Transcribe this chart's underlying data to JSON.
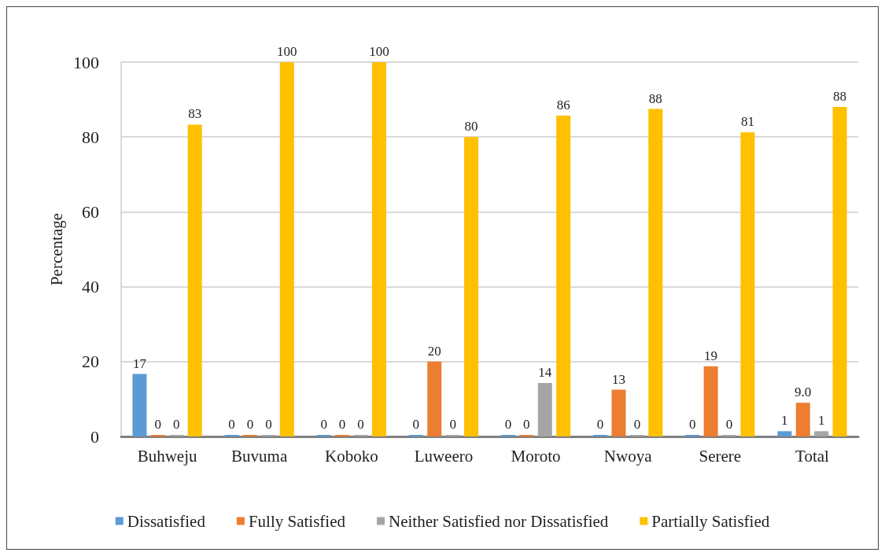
{
  "chart_data": {
    "type": "bar",
    "ylabel": "Percentage",
    "categories": [
      "Buhweju",
      "Buvuma",
      "Koboko",
      "Luweero",
      "Moroto",
      "Nwoya",
      "Serere",
      "Total"
    ],
    "series": [
      {
        "name": "Dissatisfied",
        "color": "#5b9bd5",
        "values": [
          16.7,
          0,
          0,
          0,
          0,
          0,
          0,
          1.4
        ],
        "value_labels": [
          "17",
          "0",
          "0",
          "0",
          "0",
          "0",
          "0",
          "1"
        ]
      },
      {
        "name": "Fully Satisfied",
        "color": "#ed7d31",
        "values": [
          0,
          0,
          0,
          20,
          0,
          12.5,
          18.75,
          9.0
        ],
        "value_labels": [
          "0",
          "0",
          "0",
          "20",
          "0",
          "13",
          "19",
          "9.0"
        ]
      },
      {
        "name": "Neither Satisfied nor Dissatisfied",
        "color": "#a5a5a5",
        "values": [
          0,
          0,
          0,
          0,
          14.3,
          0,
          0,
          1.4
        ],
        "value_labels": [
          "0",
          "0",
          "0",
          "0",
          "14",
          "0",
          "0",
          "1"
        ]
      },
      {
        "name": "Partially Satisfied",
        "color": "#ffc000",
        "values": [
          83.3,
          100,
          100,
          80,
          85.7,
          87.5,
          81.25,
          88
        ],
        "value_labels": [
          "83",
          "100",
          "100",
          "80",
          "86",
          "88",
          "81",
          "88"
        ]
      }
    ],
    "ylim": [
      0,
      100
    ],
    "yticks": [
      0,
      20,
      40,
      60,
      80,
      100
    ],
    "grid": "y",
    "legend": "bottom"
  }
}
